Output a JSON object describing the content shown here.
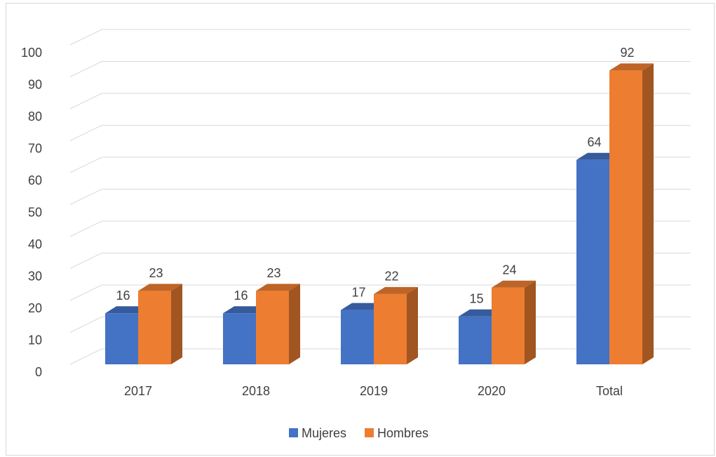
{
  "chart_data": {
    "type": "bar3d",
    "categories": [
      "2017",
      "2018",
      "2019",
      "2020",
      "Total"
    ],
    "series": [
      {
        "name": "Mujeres",
        "color": "#4472c4",
        "values": [
          16,
          16,
          17,
          15,
          64
        ]
      },
      {
        "name": "Hombres",
        "color": "#ed7d31",
        "values": [
          23,
          23,
          22,
          24,
          92
        ]
      }
    ],
    "ylim": [
      0,
      100
    ],
    "yticks": [
      0,
      10,
      20,
      30,
      40,
      50,
      60,
      70,
      80,
      90,
      100
    ],
    "grid": true,
    "legend": "bottom"
  }
}
